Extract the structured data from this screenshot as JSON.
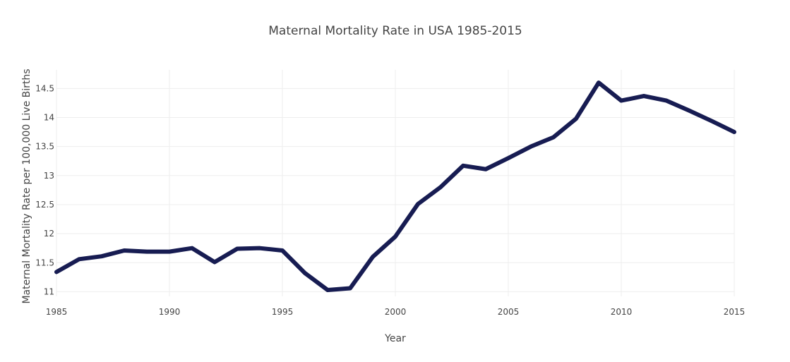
{
  "chart_data": {
    "type": "line",
    "title": "Maternal Mortality Rate in USA 1985-2015",
    "xlabel": "Year",
    "ylabel": "Maternal Mortality Rate per 100,000 Live Births",
    "xlim": [
      1985,
      2015
    ],
    "ylim": [
      10.92,
      14.82
    ],
    "x_ticks": [
      1985,
      1990,
      1995,
      2000,
      2005,
      2010,
      2015
    ],
    "y_ticks": [
      11,
      11.5,
      12,
      12.5,
      13,
      13.5,
      14,
      14.5
    ],
    "y_tick_labels": [
      "11",
      "11.5",
      "12",
      "12.5",
      "13",
      "13.5",
      "14",
      "14.5"
    ],
    "grid": true,
    "line_color": "#171c52",
    "series": [
      {
        "x": [
          1985,
          1986,
          1987,
          1988,
          1989,
          1990,
          1991,
          1992,
          1993,
          1994,
          1995,
          1996,
          1997,
          1998,
          1999,
          2000,
          2001,
          2002,
          2003,
          2004,
          2005,
          2006,
          2007,
          2008,
          2009,
          2010,
          2011,
          2012,
          2013,
          2014,
          2015
        ],
        "values": [
          11.34,
          11.56,
          11.61,
          11.71,
          11.69,
          11.69,
          11.75,
          11.51,
          11.74,
          11.75,
          11.71,
          11.32,
          11.03,
          11.06,
          11.6,
          11.95,
          12.51,
          12.8,
          13.17,
          13.11,
          13.3,
          13.5,
          13.66,
          13.98,
          14.6,
          14.29,
          14.37,
          14.29,
          14.12,
          13.94,
          13.75
        ]
      }
    ]
  }
}
